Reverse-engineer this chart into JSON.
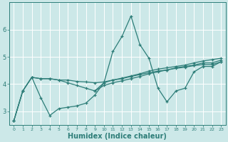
{
  "bg_color": "#cce8e8",
  "line_color": "#2d7d78",
  "grid_color": "#ffffff",
  "xlabel": "Humidex (Indice chaleur)",
  "xlabel_fontsize": 7,
  "tick_color": "#2d7d78",
  "xlim": [
    -0.5,
    23.5
  ],
  "ylim": [
    2.5,
    7.0
  ],
  "yticks": [
    3,
    4,
    5,
    6
  ],
  "xticks": [
    0,
    1,
    2,
    3,
    4,
    5,
    6,
    7,
    8,
    9,
    10,
    11,
    12,
    13,
    14,
    15,
    16,
    17,
    18,
    19,
    20,
    21,
    22,
    23
  ],
  "line1_x": [
    0,
    1,
    2,
    3,
    4,
    5,
    6,
    7,
    8,
    9,
    10,
    11,
    12,
    13,
    14,
    15,
    16,
    17,
    18,
    19,
    20,
    21,
    22,
    23
  ],
  "line1_y": [
    2.65,
    3.75,
    4.25,
    4.2,
    4.2,
    4.15,
    4.15,
    4.1,
    4.08,
    4.05,
    4.08,
    4.15,
    4.2,
    4.28,
    4.35,
    4.42,
    4.48,
    4.52,
    4.58,
    4.62,
    4.68,
    4.72,
    4.72,
    4.82
  ],
  "line2_x": [
    0,
    1,
    2,
    3,
    4,
    5,
    6,
    7,
    8,
    9,
    10,
    11,
    12,
    13,
    14,
    15,
    16,
    17,
    18,
    19,
    20,
    21,
    22,
    23
  ],
  "line2_y": [
    2.65,
    3.75,
    4.25,
    3.5,
    2.85,
    3.1,
    3.15,
    3.2,
    3.3,
    3.6,
    4.05,
    5.2,
    5.75,
    6.5,
    5.45,
    4.95,
    3.85,
    3.35,
    3.75,
    3.85,
    4.45,
    4.65,
    4.65,
    4.82
  ],
  "line3_x": [
    0,
    1,
    2,
    3,
    4,
    5,
    6,
    7,
    8,
    9,
    10,
    11,
    12,
    13,
    14,
    15,
    16,
    17,
    18,
    19,
    20,
    21,
    22,
    23
  ],
  "line3_y": [
    2.65,
    3.75,
    4.25,
    4.2,
    4.2,
    4.15,
    4.05,
    3.95,
    3.85,
    3.75,
    3.95,
    4.05,
    4.12,
    4.2,
    4.28,
    4.38,
    4.45,
    4.52,
    4.6,
    4.65,
    4.7,
    4.78,
    4.78,
    4.88
  ],
  "line4_x": [
    9,
    10,
    11,
    12,
    13,
    14,
    15,
    16,
    17,
    18,
    19,
    20,
    21,
    22,
    23
  ],
  "line4_y": [
    3.75,
    4.05,
    4.15,
    4.22,
    4.3,
    4.38,
    4.48,
    4.55,
    4.6,
    4.65,
    4.7,
    4.78,
    4.85,
    4.9,
    4.95
  ]
}
